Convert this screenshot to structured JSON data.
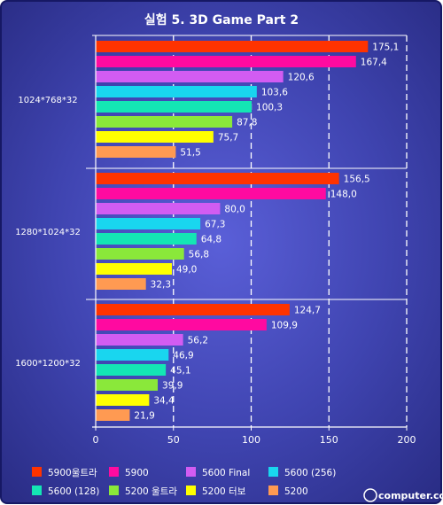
{
  "chart_data": {
    "type": "bar",
    "orientation": "horizontal",
    "title": "실험 5. 3D Game Part 2",
    "categories": [
      "1024*768*32",
      "1280*1024*32",
      "1600*1200*32"
    ],
    "series": [
      {
        "name": "5900울트라",
        "color": "#ff3300",
        "values": [
          175.1,
          156.5,
          124.7
        ],
        "labels": [
          "175,1",
          "156,5",
          "124,7"
        ]
      },
      {
        "name": "5900",
        "color": "#ff0aa0",
        "values": [
          167.4,
          148.0,
          109.9
        ],
        "labels": [
          "167,4",
          "148,0",
          "109,9"
        ]
      },
      {
        "name": "5600 Final",
        "color": "#d25cf2",
        "values": [
          120.6,
          80.0,
          56.2
        ],
        "labels": [
          "120,6",
          "80,0",
          "56,2"
        ]
      },
      {
        "name": "5600 (256)",
        "color": "#19d6ef",
        "values": [
          103.6,
          67.3,
          46.9
        ],
        "labels": [
          "103,6",
          "67,3",
          "46,9"
        ]
      },
      {
        "name": "5600 (128)",
        "color": "#14e6b4",
        "values": [
          100.3,
          64.8,
          45.1
        ],
        "labels": [
          "100,3",
          "64,8",
          "45,1"
        ]
      },
      {
        "name": "5200 울트라",
        "color": "#8ae83a",
        "values": [
          87.8,
          56.8,
          39.9
        ],
        "labels": [
          "87,8",
          "56,8",
          "39,9"
        ]
      },
      {
        "name": "5200 터보",
        "color": "#ffff00",
        "values": [
          75.7,
          49.0,
          34.4
        ],
        "labels": [
          "75,7",
          "49,0",
          "34,4"
        ]
      },
      {
        "name": "5200",
        "color": "#ff9a52",
        "values": [
          51.5,
          32.3,
          21.9
        ],
        "labels": [
          "51,5",
          "32,3",
          "21,9"
        ]
      }
    ],
    "xlim": [
      0,
      200
    ],
    "xticks": [
      0,
      50,
      100,
      150,
      200
    ],
    "grid": true,
    "legend_position": "bottom"
  },
  "watermark": "computer.co.kr",
  "colors": {
    "background_top": "#3a3f9e",
    "background_center": "#5256cf",
    "frame": "#1b1e6b"
  }
}
